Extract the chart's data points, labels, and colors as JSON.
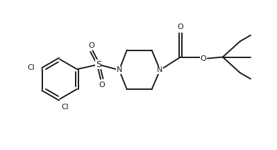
{
  "background_color": "#ffffff",
  "line_color": "#1a1a1a",
  "line_width": 1.4,
  "figsize": [
    3.99,
    2.17
  ],
  "dpi": 100,
  "xlim": [
    0,
    10
  ],
  "ylim": [
    0,
    5.4
  ]
}
